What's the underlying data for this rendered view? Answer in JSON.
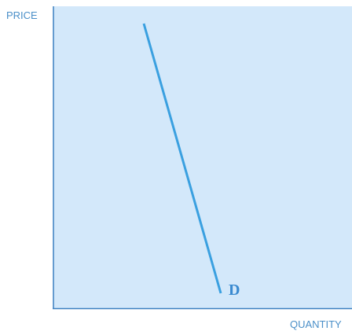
{
  "axes": {
    "y_label": "PRICE",
    "x_label": "QUANTITY"
  },
  "curve": {
    "label": "D"
  }
}
